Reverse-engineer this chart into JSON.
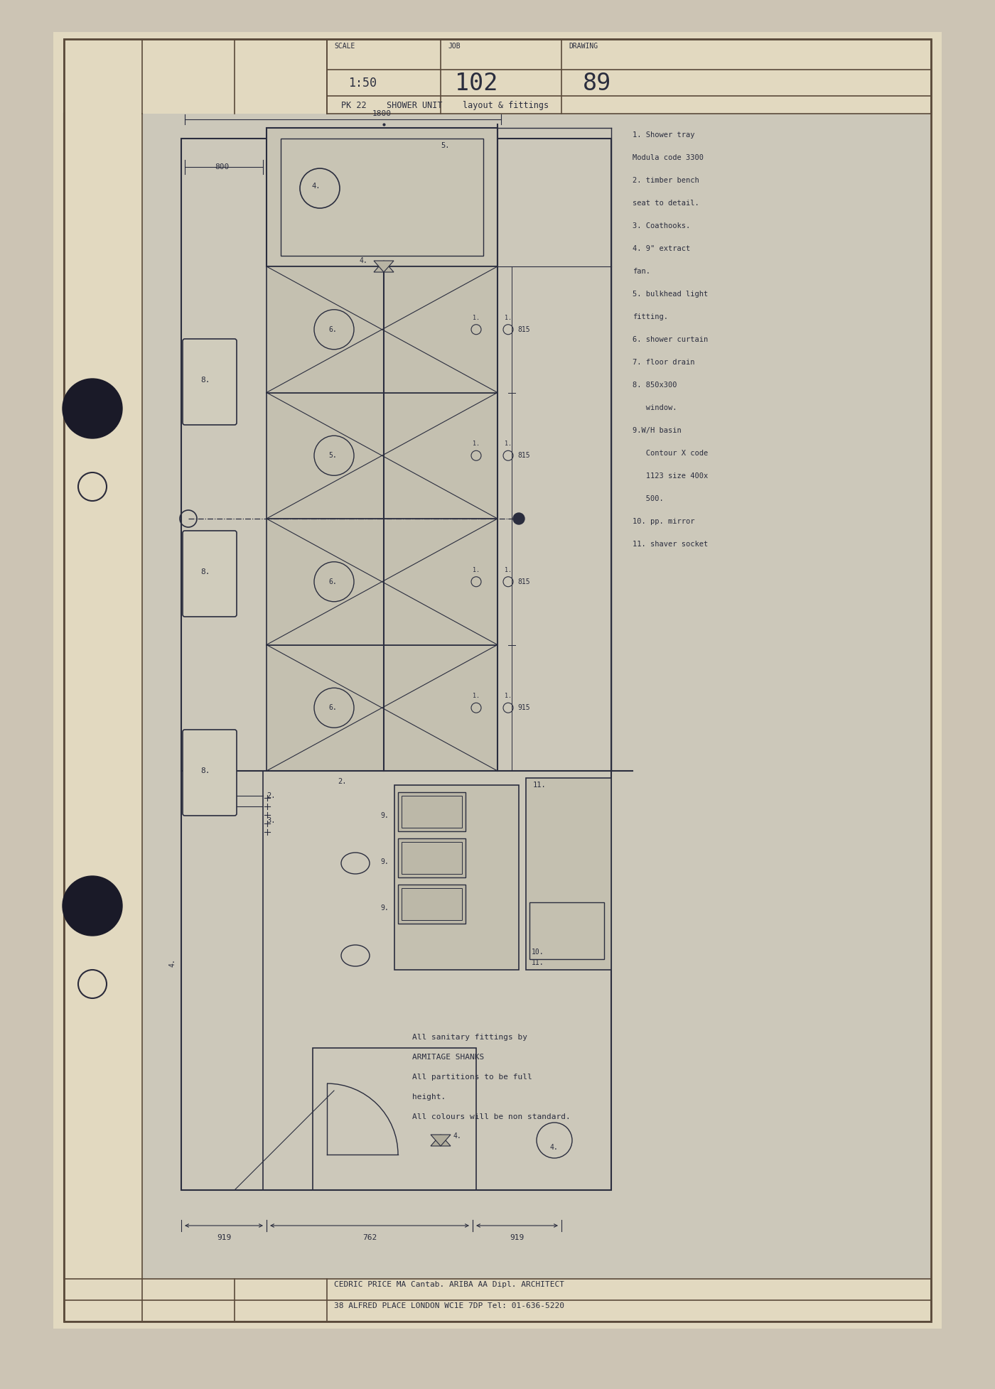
{
  "bg_color": "#ccc4b4",
  "paper_color": "#e8dfc8",
  "plan_bg": "#d8d4c4",
  "line_color": "#2a2d3e",
  "border_color": "#5a4a3a",
  "title_scale": "1:50",
  "title_job": "102",
  "title_drawing": "89",
  "subtitle": "PK 22    SHOWER UNIT    layout & fittings",
  "notes": [
    "1. Shower tray",
    "Modula code 3300",
    "2. timber bench",
    "seat to detail.",
    "3. Coathooks.",
    "4. 9\" extract",
    "fan.",
    "5. bulkhead light",
    "fitting.",
    "6. shower curtain",
    "7. floor drain",
    "8. 850x300",
    "   window.",
    "9.W/H basin",
    "   Contour X code",
    "   1123 size 400x",
    "   500.",
    "10. pp. mirror",
    "11. shaver socket"
  ],
  "footer_notes": [
    "All sanitary fittings by",
    "ARMITAGE SHANKS",
    "All partitions to be full",
    "height.",
    "All colours will be non standard."
  ],
  "footer_architect": "CEDRIC PRICE MA Cantab. ARIBA AA Dipl. ARCHITECT",
  "footer_address": "38 ALFRED PLACE LONDON WC1E 7DP Tel: 01-636-5220"
}
